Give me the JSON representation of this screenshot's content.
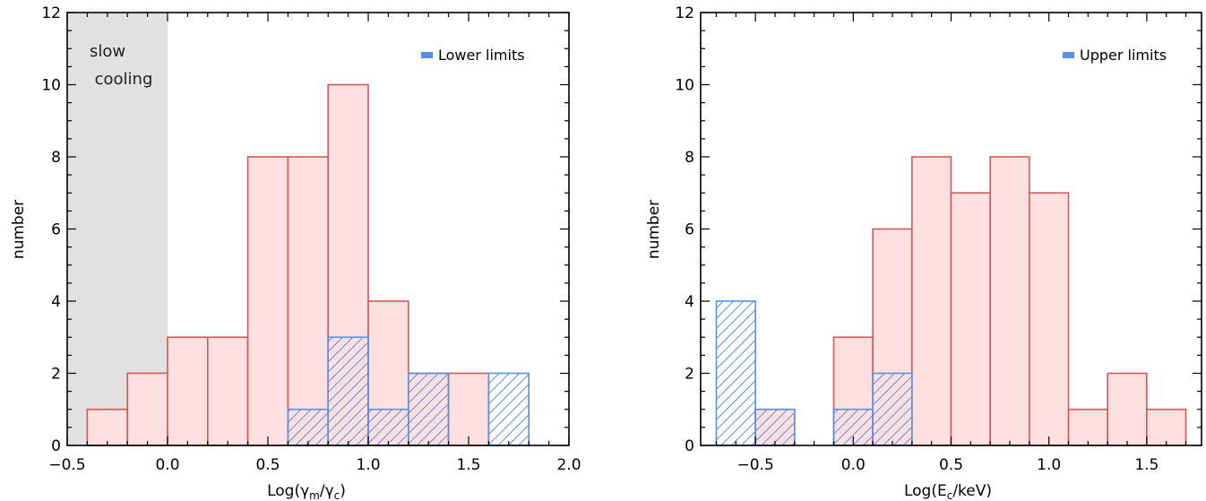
{
  "chart_data": [
    {
      "type": "bar",
      "xlabel": "Log(γm/γc)",
      "xlabel_parts": {
        "base": "Log(γ",
        "sub1": "m",
        "mid": "/γ",
        "sub2": "c",
        "end": ")"
      },
      "ylabel": "number",
      "xlim": [
        -0.5,
        2.0
      ],
      "ylim": [
        0,
        12
      ],
      "xticks": [
        "−0.5",
        "0.0",
        "0.5",
        "1.0",
        "1.5",
        "2.0"
      ],
      "yticks": [
        "0",
        "2",
        "4",
        "6",
        "8",
        "10",
        "12"
      ],
      "bin_width": 0.2,
      "series": [
        {
          "name": "",
          "style": "filled",
          "bins": [
            {
              "x0": -0.4,
              "value": 1
            },
            {
              "x0": -0.2,
              "value": 2
            },
            {
              "x0": 0.0,
              "value": 3
            },
            {
              "x0": 0.2,
              "value": 3
            },
            {
              "x0": 0.4,
              "value": 8
            },
            {
              "x0": 0.6,
              "value": 8
            },
            {
              "x0": 0.8,
              "value": 10
            },
            {
              "x0": 1.0,
              "value": 4
            },
            {
              "x0": 1.2,
              "value": 2
            },
            {
              "x0": 1.4,
              "value": 2
            }
          ]
        },
        {
          "name": "Lower limits",
          "style": "hatched",
          "bins": [
            {
              "x0": 0.6,
              "value": 1
            },
            {
              "x0": 0.8,
              "value": 3
            },
            {
              "x0": 1.0,
              "value": 1
            },
            {
              "x0": 1.2,
              "value": 2
            },
            {
              "x0": 1.6,
              "value": 2
            }
          ]
        }
      ],
      "shaded_region": {
        "x": [
          -0.5,
          0.0
        ],
        "label_lines": [
          "slow",
          "cooling"
        ]
      },
      "legend": {
        "label": "Lower limits",
        "placement": "top-right"
      }
    },
    {
      "type": "bar",
      "xlabel": "Log(Ec/keV)",
      "xlabel_parts": {
        "base": "Log(E",
        "sub1": "c",
        "end": "/keV)"
      },
      "ylabel": "number",
      "xlim": [
        -0.78,
        1.78
      ],
      "ylim": [
        0,
        12
      ],
      "xticks": [
        "−0.5",
        "0.0",
        "0.5",
        "1.0",
        "1.5"
      ],
      "yticks": [
        "0",
        "2",
        "4",
        "6",
        "8",
        "10",
        "12"
      ],
      "bin_width": 0.2,
      "series": [
        {
          "name": "",
          "style": "filled",
          "bins": [
            {
              "x0": -0.5,
              "value": 1
            },
            {
              "x0": -0.1,
              "value": 3
            },
            {
              "x0": 0.1,
              "value": 6
            },
            {
              "x0": 0.3,
              "value": 8
            },
            {
              "x0": 0.5,
              "value": 7
            },
            {
              "x0": 0.7,
              "value": 8
            },
            {
              "x0": 0.9,
              "value": 7
            },
            {
              "x0": 1.1,
              "value": 1
            },
            {
              "x0": 1.3,
              "value": 2
            },
            {
              "x0": 1.5,
              "value": 1
            }
          ]
        },
        {
          "name": "Upper limits",
          "style": "hatched",
          "bins": [
            {
              "x0": -0.7,
              "value": 4
            },
            {
              "x0": -0.5,
              "value": 1
            },
            {
              "x0": -0.1,
              "value": 1
            },
            {
              "x0": 0.1,
              "value": 2
            }
          ]
        }
      ],
      "legend": {
        "label": "Upper limits",
        "placement": "top-right"
      }
    }
  ],
  "colors": {
    "fill": "#ffe0e0",
    "edge_red": "#d05a5a",
    "hatch_blue": "#5b8fe0",
    "shade": "#e1e1e1"
  }
}
